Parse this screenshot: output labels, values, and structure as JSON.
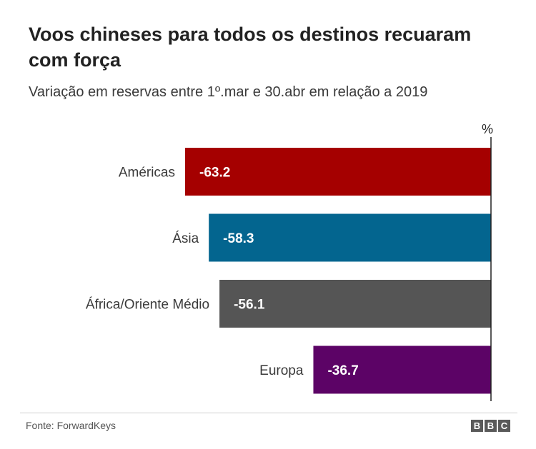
{
  "title": "Voos chineses para todos os destinos recuaram com força",
  "subtitle": "Variação em reservas entre 1º.mar e 30.abr em relação a 2019",
  "source": "Fonte: ForwardKeys",
  "logo": [
    "B",
    "B",
    "C"
  ],
  "chart_data": {
    "type": "bar",
    "orientation": "horizontal",
    "unit_label": "%",
    "categories": [
      "Américas",
      "Ásia",
      "África/Oriente Médio",
      "Europa"
    ],
    "values": [
      -63.2,
      -58.3,
      -56.1,
      -36.7
    ],
    "value_labels": [
      "-63.2",
      "-58.3",
      "-56.1",
      "-36.7"
    ],
    "colors": [
      "#a50000",
      "#03658f",
      "#555555",
      "#5c0366"
    ],
    "xlim": [
      -63.2,
      0
    ],
    "grid": false,
    "legend": "none"
  }
}
